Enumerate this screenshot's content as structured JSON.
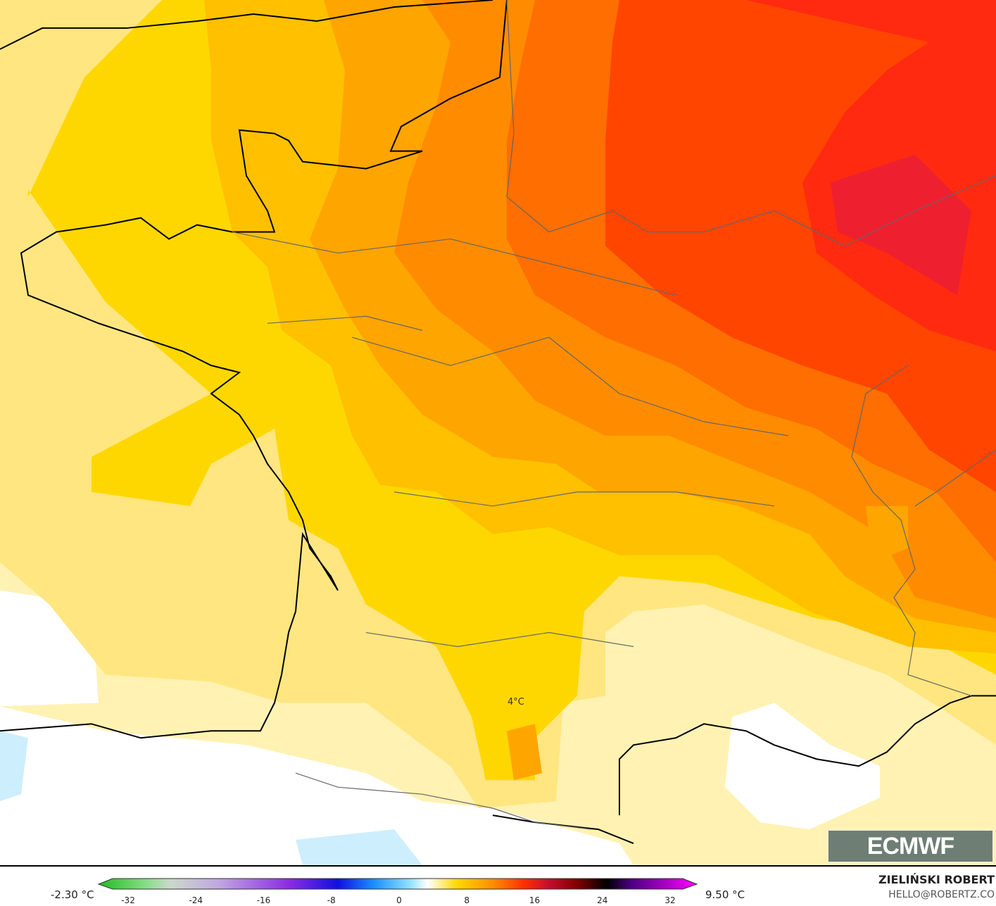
{
  "map": {
    "contour_label": "4°C",
    "variable": "temperature",
    "colors": {
      "cold_blue": "#cdeefc",
      "white": "#ffffff",
      "pale_yellow": "#fff2b3",
      "light_yellow": "#ffe680",
      "yellow": "#ffd700",
      "gold": "#ffc000",
      "orange_light": "#ffa500",
      "orange": "#ff8c00",
      "orange_dark": "#ff6e00",
      "red_orange": "#ff4500",
      "red": "#ff2a10"
    }
  },
  "legend": {
    "min_label": "-2.30 °C",
    "max_label": "9.50 °C",
    "ticks": [
      "-32",
      "-24",
      "-16",
      "-8",
      "0",
      "8",
      "16",
      "24",
      "32"
    ],
    "range": [
      -32,
      32
    ]
  },
  "branding": {
    "logo": "ECMWF",
    "author": "ZIELIŃSKI ROBERT",
    "email": "HELLO@ROBERTZ.CO"
  }
}
